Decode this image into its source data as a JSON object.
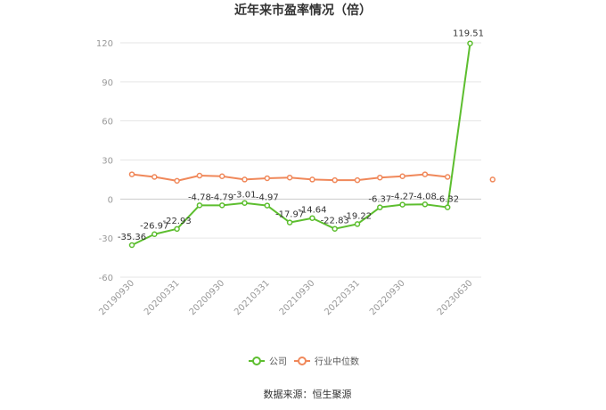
{
  "chart_data": {
    "type": "line",
    "title": "近年来市盈率情况（倍）",
    "source": "数据来源：恒生聚源",
    "ylim": [
      -60,
      120
    ],
    "yticks": [
      120,
      90,
      60,
      30,
      0,
      -30,
      -60
    ],
    "categories": [
      "20190930",
      "20191231",
      "20200331",
      "20200630",
      "20200930",
      "20201231",
      "20210331",
      "20210630",
      "20210930",
      "20211231",
      "20220331",
      "20220630",
      "20220930",
      "20221231",
      "20230331",
      "20230630",
      "20230930"
    ],
    "shown_x_labels": [
      "20190930",
      "20200331",
      "20200930",
      "20210331",
      "20210930",
      "20220331",
      "20220930",
      "20230630"
    ],
    "grid": true,
    "legend_position": "bottom",
    "series": [
      {
        "name": "公司",
        "color": "#5DBE2F",
        "values": [
          -35.36,
          -26.97,
          -22.93,
          -4.78,
          -4.79,
          -3.01,
          -4.97,
          -17.97,
          -14.64,
          -22.83,
          -19.22,
          -6.37,
          -4.27,
          -4.08,
          -6.32,
          119.51,
          null
        ],
        "labels": [
          "-35.36",
          "-26.97",
          "-22.93",
          "-4.78",
          "-4.79",
          "-3.01",
          "-4.97",
          "-17.97",
          "-14.64",
          "-22.83",
          "-19.22",
          "-6.37",
          "-4.27",
          "-4.08",
          "-6.32",
          "119.51",
          ""
        ]
      },
      {
        "name": "行业中位数",
        "color": "#F0885A",
        "values": [
          19,
          17,
          14,
          18,
          17.5,
          15,
          16,
          16.5,
          15,
          14.5,
          14.5,
          16.5,
          17.5,
          19,
          17,
          null,
          15
        ],
        "labels": []
      }
    ]
  }
}
